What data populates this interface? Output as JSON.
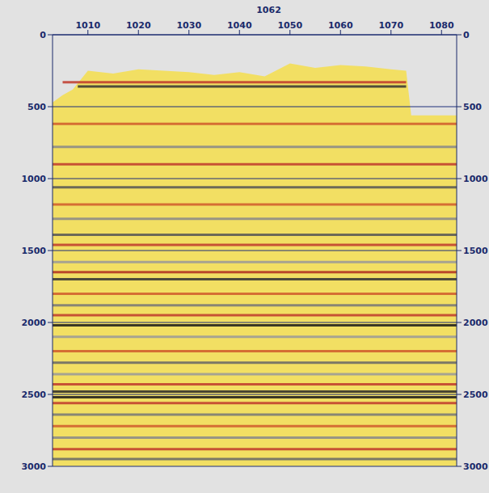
{
  "chart_data": {
    "type": "seismic",
    "title": "1062",
    "xlim": [
      1003,
      1083
    ],
    "xticks": [
      1010,
      1020,
      1030,
      1040,
      1050,
      1060,
      1070,
      1080
    ],
    "ylim": [
      0,
      3000
    ],
    "yticks": [
      0,
      500,
      1000,
      1500,
      2000,
      2500,
      3000
    ],
    "grid": true,
    "color": "#f2df63",
    "data_top": {
      "x": [
        1003,
        1005,
        1007,
        1010,
        1015,
        1020,
        1025,
        1030,
        1035,
        1040,
        1045,
        1050,
        1055,
        1060,
        1065,
        1070,
        1073,
        1074,
        1083
      ],
      "values": [
        470,
        420,
        380,
        250,
        270,
        240,
        250,
        260,
        280,
        260,
        290,
        200,
        230,
        210,
        220,
        240,
        250,
        560,
        560
      ]
    },
    "reflectors": [
      {
        "time": 330,
        "x": [
          1005,
          1073
        ],
        "color": "#c0392b"
      },
      {
        "time": 360,
        "x": [
          1008,
          1073
        ],
        "color": "#333333"
      },
      {
        "time": 620,
        "x": [
          1003,
          1083
        ],
        "color": "#d05a2a"
      },
      {
        "time": 780,
        "x": [
          1003,
          1083
        ],
        "color": "#888888"
      },
      {
        "time": 900,
        "x": [
          1003,
          1083
        ],
        "color": "#c0392b"
      },
      {
        "time": 1060,
        "x": [
          1003,
          1083
        ],
        "color": "#555555"
      },
      {
        "time": 1180,
        "x": [
          1003,
          1083
        ],
        "color": "#d05a2a"
      },
      {
        "time": 1280,
        "x": [
          1003,
          1083
        ],
        "color": "#888888"
      },
      {
        "time": 1390,
        "x": [
          1003,
          1083
        ],
        "color": "#555555"
      },
      {
        "time": 1460,
        "x": [
          1003,
          1083
        ],
        "color": "#c0392b"
      },
      {
        "time": 1580,
        "x": [
          1003,
          1083
        ],
        "color": "#999999"
      },
      {
        "time": 1650,
        "x": [
          1003,
          1083
        ],
        "color": "#b03020"
      },
      {
        "time": 1700,
        "x": [
          1003,
          1083
        ],
        "color": "#333333"
      },
      {
        "time": 1800,
        "x": [
          1003,
          1083
        ],
        "color": "#d05a2a"
      },
      {
        "time": 1880,
        "x": [
          1003,
          1083
        ],
        "color": "#777777"
      },
      {
        "time": 1950,
        "x": [
          1003,
          1083
        ],
        "color": "#c0392b"
      },
      {
        "time": 2020,
        "x": [
          1003,
          1083
        ],
        "color": "#1a1a1a"
      },
      {
        "time": 2100,
        "x": [
          1003,
          1083
        ],
        "color": "#999999"
      },
      {
        "time": 2200,
        "x": [
          1003,
          1083
        ],
        "color": "#d05a2a"
      },
      {
        "time": 2280,
        "x": [
          1003,
          1083
        ],
        "color": "#666666"
      },
      {
        "time": 2360,
        "x": [
          1003,
          1083
        ],
        "color": "#999999"
      },
      {
        "time": 2430,
        "x": [
          1003,
          1083
        ],
        "color": "#c0392b"
      },
      {
        "time": 2480,
        "x": [
          1003,
          1083
        ],
        "color": "#2a2a2a"
      },
      {
        "time": 2520,
        "x": [
          1003,
          1083
        ],
        "color": "#1a1a1a"
      },
      {
        "time": 2560,
        "x": [
          1003,
          1083
        ],
        "color": "#c0392b"
      },
      {
        "time": 2640,
        "x": [
          1003,
          1083
        ],
        "color": "#777777"
      },
      {
        "time": 2720,
        "x": [
          1003,
          1083
        ],
        "color": "#d05a2a"
      },
      {
        "time": 2800,
        "x": [
          1003,
          1083
        ],
        "color": "#888888"
      },
      {
        "time": 2880,
        "x": [
          1003,
          1083
        ],
        "color": "#c0392b"
      },
      {
        "time": 2950,
        "x": [
          1003,
          1083
        ],
        "color": "#666666"
      }
    ]
  }
}
